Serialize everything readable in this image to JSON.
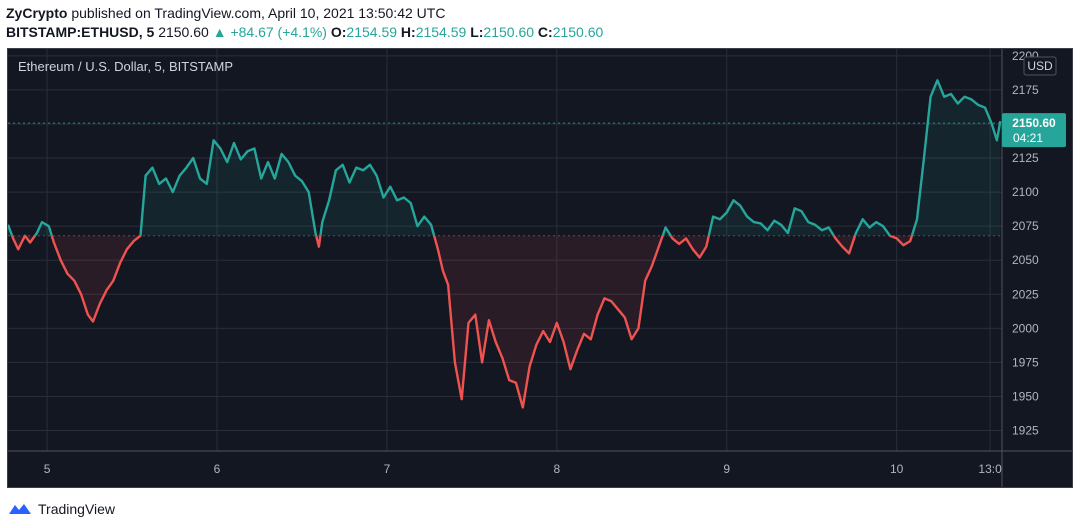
{
  "header": {
    "publisher": "ZyCrypto",
    "published_text": "published on TradingView.com, April 10, 2021 13:50:42 UTC",
    "symbol": "BITSTAMP:ETHUSD, 5",
    "last": "2150.60",
    "change": "▲ +84.67 (+4.1%)",
    "o_label": "O:",
    "o_value": "2154.59",
    "h_label": "H:",
    "h_value": "2154.59",
    "l_label": "L:",
    "l_value": "2150.60",
    "c_label": "C:",
    "c_value": "2150.60"
  },
  "chart_data": {
    "type": "line",
    "title": "Ethereum / U.S. Dollar, 5, BITSTAMP",
    "currency": "USD",
    "x_ticks": [
      {
        "label": "5",
        "day": 5
      },
      {
        "label": "6",
        "day": 6
      },
      {
        "label": "7",
        "day": 7
      },
      {
        "label": "8",
        "day": 8
      },
      {
        "label": "9",
        "day": 9
      },
      {
        "label": "10",
        "day": 10
      },
      {
        "label": "13:0",
        "day": 10.55
      }
    ],
    "xlim": [
      4.77,
      10.62
    ],
    "ylim": [
      1910,
      2205
    ],
    "y_ticks": [
      1925,
      1950,
      1975,
      2000,
      2025,
      2050,
      2075,
      2100,
      2125,
      2150,
      2175,
      2200
    ],
    "baseline": 2068,
    "last_price": "2150.60",
    "last_price_value": 2150.6,
    "countdown": "04:21",
    "colors": {
      "above": "#26a69a",
      "below": "#ef5350",
      "bg": "#131722",
      "grid": "#2a2e39",
      "text": "#b2b5be"
    },
    "series": [
      {
        "x": [
          4.77,
          4.8,
          4.83,
          4.87,
          4.9,
          4.94,
          4.97,
          5.01,
          5.04,
          5.08,
          5.12,
          5.16,
          5.2,
          5.24,
          5.27,
          5.31,
          5.35,
          5.39,
          5.43,
          5.47,
          5.51,
          5.55,
          5.58,
          5.62,
          5.66,
          5.7,
          5.74,
          5.78,
          5.82,
          5.86,
          5.9,
          5.94,
          5.98,
          6.02,
          6.06,
          6.1,
          6.14,
          6.18,
          6.22,
          6.26,
          6.3,
          6.34,
          6.38,
          6.42,
          6.46,
          6.5,
          6.54,
          6.58,
          6.6,
          6.62,
          6.66,
          6.7,
          6.74,
          6.78,
          6.82,
          6.86,
          6.9,
          6.94,
          6.98,
          7.02,
          7.06,
          7.1,
          7.14,
          7.18,
          7.22,
          7.26,
          7.3,
          7.33,
          7.36,
          7.4,
          7.44,
          7.48,
          7.52,
          7.56,
          7.6,
          7.64,
          7.68,
          7.72,
          7.76,
          7.8,
          7.84,
          7.88,
          7.92,
          7.96,
          8.0,
          8.04,
          8.08,
          8.12,
          8.16,
          8.2,
          8.24,
          8.28,
          8.32,
          8.36,
          8.4,
          8.44,
          8.48,
          8.52,
          8.56,
          8.6,
          8.64,
          8.68,
          8.72,
          8.76,
          8.8,
          8.84,
          8.88,
          8.92,
          8.96,
          9.0,
          9.04,
          9.08,
          9.12,
          9.16,
          9.2,
          9.24,
          9.28,
          9.32,
          9.36,
          9.4,
          9.44,
          9.48,
          9.52,
          9.56,
          9.6,
          9.64,
          9.68,
          9.72,
          9.76,
          9.8,
          9.84,
          9.88,
          9.92,
          9.96,
          10.0,
          10.04,
          10.08,
          10.12,
          10.16,
          10.2,
          10.24,
          10.28,
          10.32,
          10.36,
          10.4,
          10.44,
          10.48,
          10.52,
          10.56,
          10.59,
          10.61
        ],
        "y": [
          2076,
          2066,
          2058,
          2068,
          2063,
          2070,
          2078,
          2075,
          2063,
          2050,
          2040,
          2035,
          2025,
          2010,
          2005,
          2018,
          2028,
          2035,
          2048,
          2058,
          2064,
          2068,
          2112,
          2118,
          2106,
          2110,
          2100,
          2112,
          2118,
          2125,
          2110,
          2106,
          2138,
          2132,
          2122,
          2136,
          2124,
          2130,
          2132,
          2110,
          2122,
          2110,
          2128,
          2122,
          2112,
          2108,
          2100,
          2070,
          2060,
          2078,
          2094,
          2116,
          2120,
          2107,
          2118,
          2116,
          2120,
          2112,
          2096,
          2104,
          2094,
          2096,
          2092,
          2075,
          2082,
          2076,
          2058,
          2042,
          2032,
          1975,
          1948,
          2004,
          2010,
          1975,
          2006,
          1990,
          1978,
          1962,
          1960,
          1942,
          1972,
          1988,
          1998,
          1990,
          2004,
          1990,
          1970,
          1984,
          1996,
          1992,
          2010,
          2022,
          2020,
          2014,
          2008,
          1992,
          2000,
          2035,
          2046,
          2060,
          2074,
          2066,
          2062,
          2066,
          2058,
          2052,
          2060,
          2082,
          2080,
          2085,
          2094,
          2090,
          2082,
          2078,
          2077,
          2072,
          2079,
          2076,
          2070,
          2088,
          2086,
          2078,
          2076,
          2072,
          2074,
          2066,
          2060,
          2055,
          2070,
          2080,
          2074,
          2078,
          2075,
          2068,
          2066,
          2061,
          2064,
          2080,
          2124,
          2170,
          2182,
          2170,
          2172,
          2165,
          2170,
          2168,
          2164,
          2162,
          2150,
          2138,
          2152
        ]
      }
    ]
  },
  "footer": {
    "brand": "TradingView"
  }
}
